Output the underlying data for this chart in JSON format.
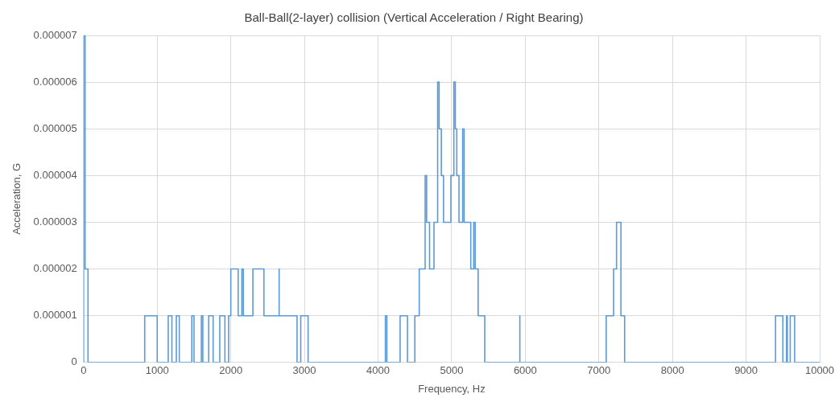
{
  "chart_data": {
    "type": "line",
    "title": "Ball-Ball(2-layer) collision (Vertical Acceleration / Right Bearing)",
    "xlabel": "Frequency, Hz",
    "ylabel": "Acceleration, G",
    "x": [
      0,
      0,
      20,
      20,
      60,
      60,
      830,
      830,
      1000,
      1000,
      1150,
      1150,
      1200,
      1200,
      1260,
      1260,
      1300,
      1300,
      1470,
      1470,
      1500,
      1500,
      1600,
      1600,
      1620,
      1620,
      1700,
      1700,
      1760,
      1760,
      1850,
      1850,
      1920,
      1920,
      1970,
      1970,
      2000,
      2000,
      2100,
      2100,
      2150,
      2150,
      2170,
      2170,
      2300,
      2300,
      2450,
      2450,
      2650,
      2650,
      2660,
      2660,
      2900,
      2900,
      2950,
      2950,
      3050,
      3050,
      4100,
      4100,
      4120,
      4120,
      4300,
      4300,
      4400,
      4400,
      4500,
      4500,
      4560,
      4560,
      4640,
      4640,
      4660,
      4660,
      4700,
      4700,
      4760,
      4760,
      4810,
      4810,
      4830,
      4830,
      4860,
      4860,
      4890,
      4890,
      4990,
      4990,
      5030,
      5030,
      5050,
      5050,
      5070,
      5070,
      5100,
      5100,
      5150,
      5150,
      5170,
      5170,
      5260,
      5260,
      5300,
      5300,
      5320,
      5320,
      5360,
      5360,
      5450,
      5450,
      5920,
      5920,
      5930,
      5930,
      7100,
      7100,
      7200,
      7200,
      7240,
      7240,
      7300,
      7300,
      7350,
      7350,
      9400,
      9400,
      9500,
      9500,
      9550,
      9550,
      9560,
      9560,
      9600,
      9600,
      9660,
      9660,
      10000
    ],
    "series": [
      {
        "color": "#5b9bd5",
        "values": [
          0,
          7e-06,
          7e-06,
          2e-06,
          2e-06,
          0,
          0,
          1e-06,
          1e-06,
          0,
          0,
          1e-06,
          1e-06,
          0,
          0,
          1e-06,
          1e-06,
          0,
          0,
          1e-06,
          1e-06,
          0,
          0,
          1e-06,
          1e-06,
          0,
          0,
          1e-06,
          1e-06,
          0,
          0,
          1e-06,
          1e-06,
          0,
          0,
          1e-06,
          1e-06,
          2e-06,
          2e-06,
          1e-06,
          1e-06,
          2e-06,
          2e-06,
          1e-06,
          1e-06,
          2e-06,
          2e-06,
          1e-06,
          1e-06,
          2e-06,
          2e-06,
          1e-06,
          1e-06,
          0,
          0,
          1e-06,
          1e-06,
          0,
          0,
          1e-06,
          1e-06,
          0,
          0,
          1e-06,
          1e-06,
          0,
          0,
          1e-06,
          1e-06,
          2e-06,
          2e-06,
          4e-06,
          4e-06,
          3e-06,
          3e-06,
          2e-06,
          2e-06,
          3e-06,
          3e-06,
          6e-06,
          6e-06,
          5e-06,
          5e-06,
          4e-06,
          4e-06,
          3e-06,
          3e-06,
          4e-06,
          4e-06,
          6e-06,
          6e-06,
          5e-06,
          5e-06,
          4e-06,
          4e-06,
          3e-06,
          3e-06,
          5e-06,
          5e-06,
          3e-06,
          3e-06,
          2e-06,
          2e-06,
          3e-06,
          3e-06,
          2e-06,
          2e-06,
          1e-06,
          1e-06,
          0,
          0,
          1e-06,
          1e-06,
          0,
          0,
          1e-06,
          1e-06,
          2e-06,
          2e-06,
          3e-06,
          3e-06,
          1e-06,
          1e-06,
          0,
          0,
          1e-06,
          1e-06,
          0,
          0,
          1e-06,
          1e-06,
          0,
          0,
          1e-06,
          1e-06,
          0,
          0
        ]
      }
    ],
    "xlim": [
      0,
      10000
    ],
    "xticks": [
      0,
      1000,
      2000,
      3000,
      4000,
      5000,
      6000,
      7000,
      8000,
      9000,
      10000
    ],
    "ylim": [
      0,
      7e-06
    ],
    "yticks": [
      0,
      {
        "value": 1e-06,
        "label": "0.000001"
      },
      {
        "value": 2e-06,
        "label": "0.000002"
      },
      {
        "value": 3e-06,
        "label": "0.000003"
      },
      {
        "value": 4e-06,
        "label": "0.000004"
      },
      {
        "value": 5e-06,
        "label": "0.000005"
      },
      {
        "value": 6e-06,
        "label": "0.000006"
      },
      {
        "value": 7e-06,
        "label": "0.000007"
      }
    ],
    "grid": true,
    "legend": false,
    "marker": "none",
    "line_style": "solid"
  }
}
